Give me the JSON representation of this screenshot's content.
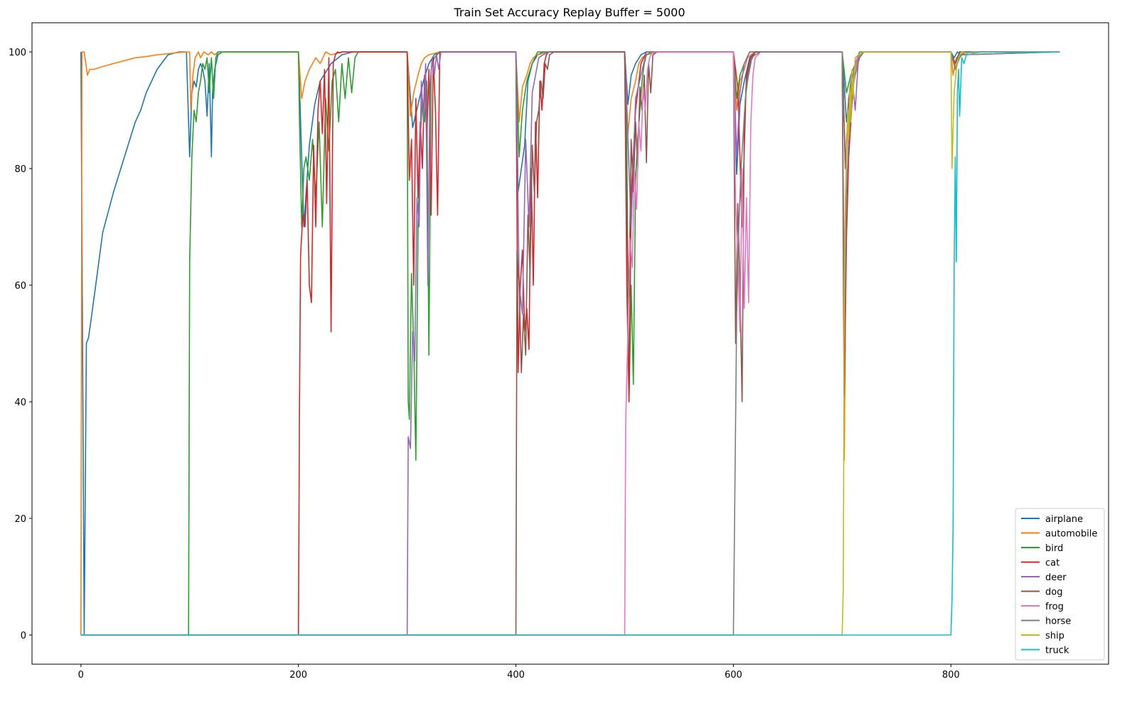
{
  "chart_data": {
    "type": "line",
    "title": "Train Set Accuracy Replay Buffer = 5000",
    "xlabel": "",
    "ylabel": "",
    "xlim": [
      -45,
      945
    ],
    "ylim": [
      -5,
      105
    ],
    "xticks": [
      0,
      200,
      400,
      600,
      800
    ],
    "yticks": [
      0,
      20,
      40,
      60,
      80,
      100
    ],
    "grid": false,
    "legend_position": "lower-right",
    "series": [
      {
        "name": "airplane",
        "color": "#1f77b4",
        "x": [
          0,
          3,
          5,
          7,
          10,
          15,
          20,
          30,
          40,
          50,
          55,
          60,
          70,
          80,
          90,
          97,
          100,
          102,
          104,
          106,
          108,
          110,
          112,
          114,
          116,
          118,
          120,
          121,
          123,
          126,
          130,
          200,
          205,
          210,
          215,
          220,
          230,
          240,
          250,
          255,
          300,
          305,
          310,
          315,
          320,
          325,
          330,
          400,
          402,
          405,
          408,
          411,
          415,
          420,
          425,
          430,
          500,
          503,
          506,
          510,
          515,
          520,
          525,
          600,
          603,
          606,
          610,
          615,
          620,
          700,
          704,
          708,
          712,
          716,
          720,
          800,
          803,
          806,
          810,
          815,
          820,
          900
        ],
        "y": [
          100,
          0,
          50,
          51,
          55,
          62,
          69,
          76,
          82,
          88,
          90,
          93,
          97,
          99.5,
          100,
          100,
          82,
          93,
          95,
          94,
          97,
          98,
          97,
          95,
          89,
          98,
          82,
          93,
          97,
          99.5,
          100,
          100,
          70,
          84,
          91,
          95,
          98,
          99.5,
          100,
          100,
          100,
          87,
          91,
          95,
          98,
          99.5,
          100,
          100,
          76,
          80,
          84,
          95,
          98,
          99.5,
          100,
          100,
          100,
          91,
          96,
          98,
          99.5,
          100,
          100,
          100,
          79,
          91,
          95,
          99,
          100,
          100,
          88,
          95,
          97,
          99.5,
          100,
          100,
          99,
          100,
          99.5,
          100,
          100,
          100
        ]
      },
      {
        "name": "automobile",
        "color": "#ff7f0e",
        "x": [
          0,
          1,
          3,
          6,
          8,
          12,
          20,
          30,
          40,
          50,
          60,
          70,
          80,
          90,
          100,
          101,
          103,
          105,
          108,
          110,
          113,
          117,
          120,
          123,
          126,
          130,
          200,
          203,
          206,
          210,
          213,
          216,
          220,
          225,
          230,
          240,
          300,
          303,
          306,
          310,
          313,
          316,
          320,
          330,
          400,
          403,
          406,
          410,
          413,
          416,
          420,
          430,
          500,
          503,
          506,
          510,
          513,
          516,
          520,
          530,
          600,
          603,
          606,
          610,
          613,
          616,
          620,
          700,
          702,
          704,
          708,
          712,
          716,
          720,
          800,
          802,
          805,
          810,
          815,
          820,
          900
        ],
        "y": [
          0,
          100,
          100,
          96,
          97,
          97,
          97.5,
          98,
          98.5,
          99,
          99.2,
          99.5,
          99.7,
          99.9,
          100,
          90,
          96,
          99,
          100,
          99,
          100,
          99.5,
          100,
          99.5,
          100,
          100,
          100,
          92,
          95,
          97,
          98,
          99,
          98,
          100,
          99.5,
          100,
          100,
          89,
          93,
          96,
          98,
          99,
          99.5,
          100,
          100,
          88,
          94,
          96,
          98,
          99,
          99.5,
          100,
          100,
          86,
          92,
          95,
          98,
          99,
          99.5,
          100,
          100,
          90,
          95,
          97,
          99,
          99.5,
          100,
          100,
          30,
          85,
          94,
          97,
          99,
          100,
          100,
          96,
          99,
          99.5,
          100,
          100,
          100
        ]
      },
      {
        "name": "bird",
        "color": "#2ca02c",
        "x": [
          0,
          99,
          100,
          102,
          104,
          106,
          108,
          110,
          112,
          114,
          116,
          118,
          120,
          122,
          124,
          126,
          128,
          130,
          200,
          201,
          203,
          205,
          207,
          210,
          213,
          216,
          219,
          222,
          225,
          228,
          231,
          234,
          237,
          240,
          243,
          246,
          249,
          252,
          255,
          300,
          301,
          302,
          304,
          306,
          308,
          310,
          312,
          314,
          316,
          318,
          320,
          322,
          325,
          330,
          400,
          403,
          406,
          410,
          415,
          420,
          500,
          502,
          504,
          506,
          508,
          510,
          512,
          514,
          516,
          518,
          520,
          525,
          600,
          603,
          606,
          610,
          615,
          700,
          704,
          708,
          712,
          716,
          800,
          804,
          808,
          812,
          900
        ],
        "y": [
          0,
          0,
          64,
          82,
          90,
          88,
          93,
          95,
          98,
          97,
          99,
          93,
          99,
          92,
          99,
          100,
          100,
          100,
          100,
          88,
          70,
          80,
          82,
          78,
          85,
          75,
          88,
          70,
          92,
          83,
          95,
          97,
          88,
          98,
          92,
          99,
          93,
          99,
          100,
          100,
          40,
          37,
          62,
          50,
          30,
          70,
          85,
          92,
          88,
          95,
          48,
          97,
          99,
          100,
          100,
          82,
          90,
          95,
          98,
          100,
          100,
          84,
          40,
          60,
          43,
          78,
          85,
          90,
          95,
          98,
          99.5,
          100,
          100,
          92,
          96,
          98,
          100,
          100,
          93,
          96,
          98,
          100,
          100,
          97,
          99,
          100,
          100
        ]
      },
      {
        "name": "cat",
        "color": "#d62728",
        "x": [
          0,
          199,
          200,
          201,
          202,
          204,
          206,
          208,
          210,
          212,
          214,
          216,
          218,
          220,
          222,
          224,
          226,
          228,
          230,
          232,
          234,
          236,
          238,
          240,
          245,
          250,
          300,
          302,
          304,
          306,
          308,
          310,
          312,
          314,
          316,
          318,
          320,
          322,
          324,
          326,
          328,
          330,
          400,
          402,
          404,
          406,
          408,
          410,
          412,
          414,
          416,
          418,
          420,
          422,
          424,
          426,
          428,
          430,
          500,
          502,
          504,
          506,
          510,
          515,
          520,
          600,
          604,
          608,
          612,
          616,
          620,
          700,
          702,
          704,
          706,
          708,
          710,
          714,
          720,
          800,
          804,
          808,
          900
        ],
        "y": [
          0,
          0,
          0,
          40,
          65,
          72,
          70,
          78,
          60,
          57,
          84,
          70,
          90,
          95,
          86,
          97,
          74,
          99,
          52,
          98,
          99.5,
          100,
          99.8,
          100,
          100,
          100,
          100,
          78,
          85,
          60,
          92,
          75,
          88,
          80,
          96,
          85,
          97,
          72,
          99,
          90,
          72,
          100,
          100,
          45,
          60,
          66,
          52,
          56,
          49,
          80,
          60,
          88,
          75,
          95,
          90,
          98,
          99.5,
          100,
          100,
          60,
          40,
          75,
          90,
          98,
          100,
          100,
          94,
          70,
          96,
          99,
          100,
          100,
          41,
          68,
          82,
          88,
          95,
          99,
          100,
          100,
          98,
          100,
          100
        ]
      },
      {
        "name": "deer",
        "color": "#9467bd",
        "x": [
          0,
          299,
          300,
          301,
          303,
          305,
          307,
          309,
          311,
          313,
          315,
          317,
          319,
          321,
          323,
          325,
          327,
          329,
          331,
          335,
          340,
          400,
          403,
          406,
          409,
          412,
          415,
          418,
          421,
          425,
          430,
          500,
          503,
          506,
          510,
          515,
          520,
          600,
          603,
          606,
          610,
          615,
          700,
          703,
          706,
          709,
          712,
          715,
          720,
          800,
          804,
          808,
          900
        ],
        "y": [
          0,
          0,
          0,
          34,
          32,
          52,
          47,
          75,
          70,
          95,
          88,
          98,
          60,
          94,
          99,
          96,
          99.5,
          97,
          100,
          100,
          100,
          100,
          60,
          55,
          85,
          70,
          93,
          96,
          99,
          99.5,
          100,
          100,
          85,
          70,
          92,
          96,
          100,
          100,
          82,
          93,
          98,
          100,
          100,
          80,
          92,
          96,
          90,
          99,
          100,
          100,
          97,
          99.5,
          100
        ]
      },
      {
        "name": "dog",
        "color": "#8c564b",
        "x": [
          0,
          399,
          400,
          401,
          403,
          405,
          407,
          409,
          411,
          413,
          415,
          417,
          419,
          421,
          423,
          425,
          427,
          429,
          431,
          435,
          440,
          500,
          502,
          504,
          506,
          508,
          510,
          512,
          514,
          516,
          518,
          520,
          522,
          524,
          526,
          530,
          600,
          602,
          604,
          606,
          608,
          610,
          612,
          615,
          620,
          700,
          703,
          706,
          710,
          714,
          720,
          800,
          804,
          808,
          900
        ],
        "y": [
          0,
          0,
          0,
          66,
          60,
          45,
          55,
          48,
          72,
          62,
          84,
          76,
          88,
          90,
          95,
          92,
          98,
          97,
          99.5,
          100,
          100,
          100,
          70,
          58,
          85,
          76,
          88,
          80,
          94,
          90,
          96,
          81,
          98,
          93,
          99.5,
          100,
          100,
          50,
          74,
          60,
          40,
          88,
          95,
          98,
          100,
          100,
          80,
          92,
          96,
          99,
          100,
          100,
          98,
          100,
          100
        ]
      },
      {
        "name": "frog",
        "color": "#e377c2",
        "x": [
          0,
          499,
          500,
          501,
          503,
          505,
          507,
          509,
          511,
          513,
          515,
          517,
          519,
          521,
          523,
          525,
          530,
          600,
          602,
          604,
          606,
          608,
          610,
          612,
          614,
          616,
          618,
          620,
          625,
          700,
          702,
          704,
          706,
          710,
          714,
          720,
          800,
          804,
          808,
          900
        ],
        "y": [
          0,
          0,
          0,
          37,
          52,
          68,
          63,
          80,
          73,
          88,
          83,
          94,
          90,
          97,
          99,
          99.8,
          100,
          100,
          74,
          65,
          52,
          80,
          56,
          75,
          57,
          88,
          96,
          99,
          100,
          100,
          60,
          82,
          90,
          95,
          99,
          100,
          100,
          97,
          99.5,
          100
        ]
      },
      {
        "name": "horse",
        "color": "#7f7f7f",
        "x": [
          0,
          599,
          600,
          601,
          603,
          605,
          607,
          609,
          611,
          613,
          615,
          617,
          620,
          625,
          630,
          700,
          702,
          704,
          706,
          708,
          712,
          716,
          720,
          800,
          804,
          808,
          900
        ],
        "y": [
          0,
          0,
          0,
          18,
          55,
          70,
          80,
          86,
          92,
          95,
          97,
          99,
          99.5,
          100,
          100,
          100,
          50,
          75,
          85,
          92,
          96,
          99,
          100,
          100,
          97,
          99.5,
          100
        ]
      },
      {
        "name": "ship",
        "color": "#bcbd22",
        "x": [
          0,
          699,
          700,
          701,
          702,
          703,
          704,
          705,
          706,
          707,
          708,
          709,
          710,
          712,
          715,
          720,
          730,
          800,
          801,
          803,
          805,
          807,
          810,
          815,
          820,
          900
        ],
        "y": [
          0,
          0,
          0,
          8,
          60,
          75,
          82,
          90,
          85,
          94,
          88,
          97,
          92,
          99,
          99.5,
          100,
          100,
          100,
          80,
          93,
          97,
          99,
          100,
          99.8,
          100,
          100
        ]
      },
      {
        "name": "truck",
        "color": "#17becf",
        "x": [
          0,
          799,
          800,
          801,
          802,
          803,
          804,
          805,
          806,
          807,
          808,
          810,
          812,
          815,
          820,
          830,
          900
        ],
        "y": [
          0,
          0,
          0,
          6,
          18,
          62,
          82,
          64,
          93,
          97,
          89,
          99,
          98,
          100,
          99.8,
          100,
          100
        ]
      }
    ]
  }
}
